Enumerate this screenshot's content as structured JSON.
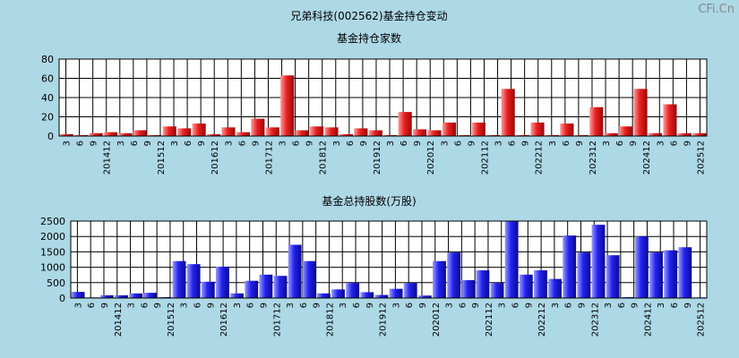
{
  "watermark": "CFi.Cn",
  "page_title": "兄弟科技(002562)基金持仓变动",
  "chart_data": [
    {
      "type": "bar",
      "title": "基金持仓家数",
      "ylim": [
        0,
        80
      ],
      "yticks": [
        0,
        20,
        40,
        60,
        80
      ],
      "tick_labels": [
        "3",
        "6",
        "9",
        "201412",
        "3",
        "6",
        "9",
        "201512",
        "3",
        "6",
        "9",
        "201612",
        "3",
        "6",
        "9",
        "201712",
        "3",
        "6",
        "9",
        "201812",
        "3",
        "6",
        "9",
        "201912",
        "3",
        "6",
        "9",
        "202012",
        "3",
        "6",
        "9",
        "202112",
        "3",
        "6",
        "9",
        "202212",
        "3",
        "6",
        "9",
        "202312",
        "3",
        "6",
        "9",
        "202412",
        "3",
        "6",
        "9",
        "202512"
      ],
      "values": [
        2,
        1,
        3,
        4,
        3,
        6,
        1,
        10,
        8,
        13,
        2,
        9,
        4,
        18,
        9,
        63,
        6,
        10,
        9,
        2,
        8,
        6,
        1,
        25,
        7,
        6,
        14,
        1,
        14,
        1,
        49,
        1,
        14,
        1,
        13,
        1,
        30,
        3,
        10,
        49,
        3,
        33,
        3,
        3
      ],
      "grid": true,
      "color": "#e02020"
    },
    {
      "type": "bar",
      "title": "基金总持股数(万股)",
      "ylim": [
        0,
        2500
      ],
      "yticks": [
        0,
        500,
        1000,
        1500,
        2000,
        2500
      ],
      "tick_labels": [
        "3",
        "6",
        "9",
        "201412",
        "3",
        "6",
        "9",
        "201512",
        "3",
        "6",
        "9",
        "201612",
        "3",
        "6",
        "9",
        "201712",
        "3",
        "6",
        "9",
        "201812",
        "3",
        "6",
        "9",
        "201912",
        "3",
        "6",
        "9",
        "202012",
        "3",
        "6",
        "9",
        "202112",
        "3",
        "6",
        "9",
        "202212",
        "3",
        "6",
        "9",
        "202312",
        "3",
        "6",
        "9",
        "202412",
        "3",
        "6",
        "9",
        "202512"
      ],
      "values": [
        200,
        20,
        90,
        90,
        150,
        170,
        30,
        1200,
        1100,
        530,
        1020,
        150,
        560,
        760,
        720,
        1730,
        1200,
        150,
        280,
        490,
        190,
        100,
        300,
        490,
        80,
        1200,
        1480,
        580,
        900,
        490,
        2500,
        760,
        900,
        620,
        2030,
        1480,
        2380,
        1390,
        30,
        2000,
        1480,
        1550,
        1650,
        20
      ],
      "grid": true,
      "color": "#2222ee"
    }
  ]
}
